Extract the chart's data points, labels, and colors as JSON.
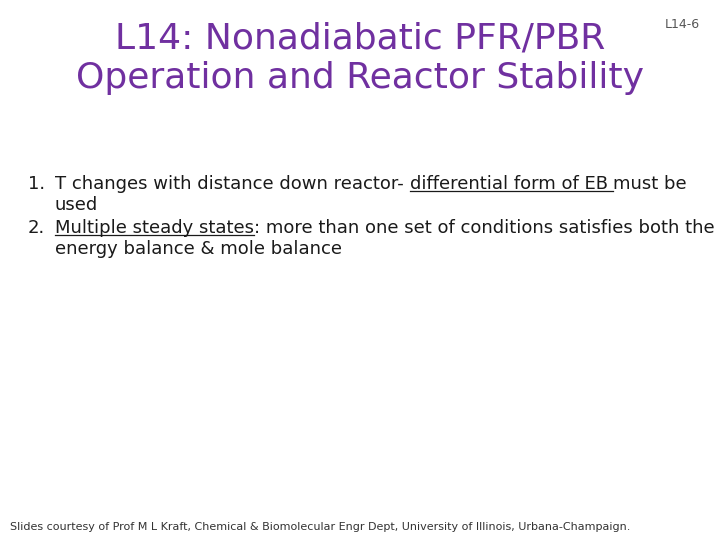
{
  "title_line1": "L14: Nonadiabatic PFR/PBR",
  "title_line2": "Operation and Reactor Stability",
  "title_color": "#7030A0",
  "slide_label": "L14-6",
  "slide_label_color": "#555555",
  "background_color": "#FFFFFF",
  "bullet1_plain": "T changes with distance down reactor- ",
  "bullet1_underlined": "differential form of EB ",
  "bullet1_end": "must be",
  "bullet1_line2": "used",
  "bullet2_underlined": "Multiple steady states",
  "bullet2_end": ": more than one set of conditions satisfies both the",
  "bullet2_line2": "energy balance & mole balance",
  "footer": "Slides courtesy of Prof M L Kraft, Chemical & Biomolecular Engr Dept, University of Illinois, Urbana-Champaign.",
  "text_color": "#1a1a1a",
  "footer_color": "#333333",
  "title_fontsize": 26,
  "body_fontsize": 13,
  "footer_fontsize": 8,
  "label_fontsize": 9
}
